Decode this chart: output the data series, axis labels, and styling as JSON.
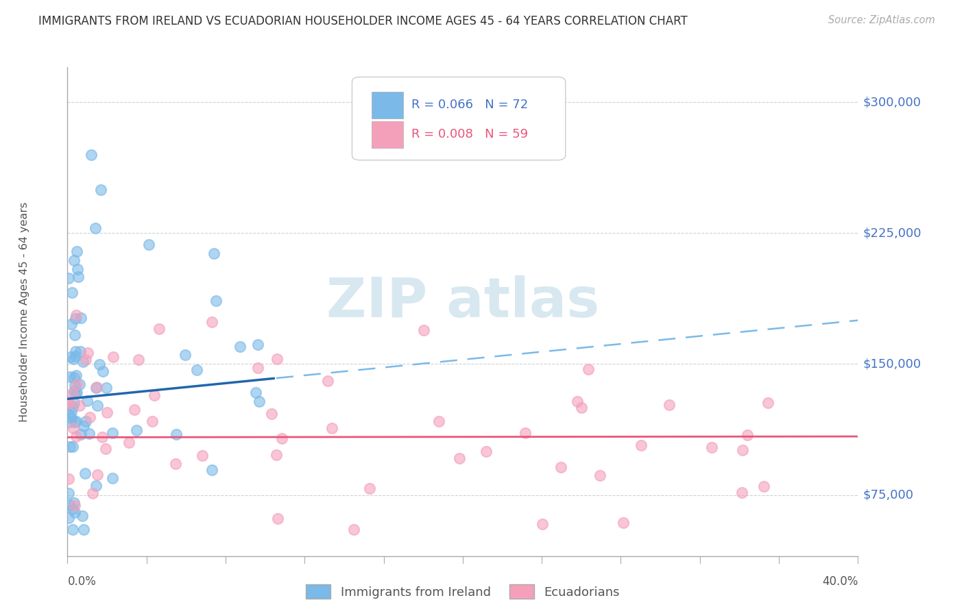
{
  "title": "IMMIGRANTS FROM IRELAND VS ECUADORIAN HOUSEHOLDER INCOME AGES 45 - 64 YEARS CORRELATION CHART",
  "source": "Source: ZipAtlas.com",
  "ylabel_label": "Householder Income Ages 45 - 64 years",
  "y_ticks": [
    75000,
    150000,
    225000,
    300000
  ],
  "y_tick_labels": [
    "$75,000",
    "$150,000",
    "$225,000",
    "$300,000"
  ],
  "xlim": [
    0.0,
    40.0
  ],
  "ylim": [
    40000,
    320000
  ],
  "ireland_R": 0.066,
  "ireland_N": 72,
  "ecuador_R": 0.008,
  "ecuador_N": 59,
  "ireland_color": "#7ab9e8",
  "ecuador_color": "#f4a0bb",
  "ireland_trend_color": "#2166ac",
  "ireland_dashed_color": "#7ab9e8",
  "ecuador_trend_color": "#e8557a",
  "background_color": "#ffffff",
  "grid_color": "#d0d0d0",
  "title_color": "#333333",
  "axis_label_color": "#4472c4",
  "watermark_color": "#d8e8f0",
  "legend_text_blue": "#4472c4",
  "legend_text_pink": "#e8557a"
}
